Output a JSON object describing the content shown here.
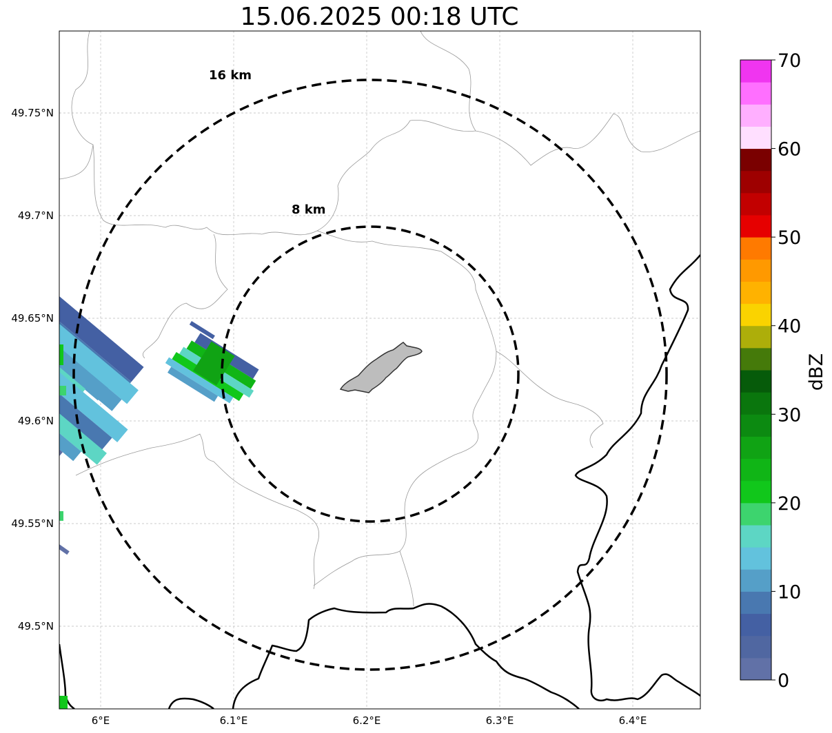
{
  "title": "15.06.2025 00:18 UTC",
  "map": {
    "lat_ticks": [
      "49.75°N",
      "49.7°N",
      "49.65°N",
      "49.6°N",
      "49.55°N",
      "49.5°N"
    ],
    "lon_ticks": [
      "6°E",
      "6.1°E",
      "6.2°E",
      "6.3°E",
      "6.4°E"
    ],
    "range_rings": [
      {
        "label": "16 km",
        "radius_km": 16
      },
      {
        "label": "8 km",
        "radius_km": 8
      }
    ],
    "grid": true
  },
  "colorbar": {
    "label": "dBZ",
    "ticks": [
      "0",
      "10",
      "20",
      "30",
      "40",
      "50",
      "60",
      "70"
    ],
    "min": 0,
    "max": 70,
    "step": 2.5,
    "colors": [
      "#6171a7",
      "#5067a1",
      "#4460a3",
      "#4978b0",
      "#559fc8",
      "#62c2dd",
      "#5dd6c4",
      "#3dd46e",
      "#11c71b",
      "#10b516",
      "#10a314",
      "#0c8a11",
      "#0a760d",
      "#065b0a",
      "#457a0a",
      "#adae0a",
      "#fad300",
      "#ffb200",
      "#ff9900",
      "#ff7a00",
      "#e60000",
      "#c20000",
      "#9e0000",
      "#7a0000",
      "#ffdfff",
      "#ffafff",
      "#ff6fff",
      "#f035f0"
    ]
  }
}
